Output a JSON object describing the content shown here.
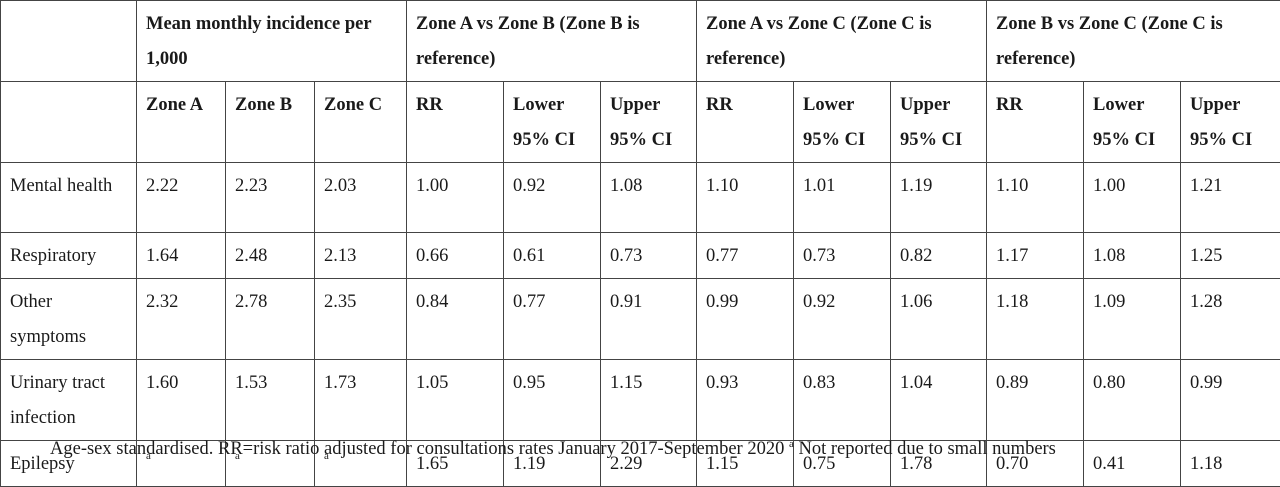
{
  "table": {
    "group_headers": [
      "",
      "Mean monthly incidence per 1,000",
      "Zone A vs Zone B (Zone B is reference)",
      "Zone A vs Zone C (Zone C is reference)",
      "Zone B vs Zone C (Zone C is reference)"
    ],
    "sub_headers": [
      "",
      "Zone A",
      "Zone B",
      "Zone C",
      "RR",
      "Lower 95% CI",
      "Upper 95% CI",
      "RR",
      "Lower 95% CI",
      "Upper 95% CI",
      "RR",
      "Lower 95% CI",
      "Upper 95% CI"
    ],
    "rows": [
      [
        "Mental health",
        "2.22",
        "2.23",
        "2.03",
        "1.00",
        "0.92",
        "1.08",
        "1.10",
        "1.01",
        "1.19",
        "1.10",
        "1.00",
        "1.21"
      ],
      [
        "Respiratory",
        "1.64",
        "2.48",
        "2.13",
        "0.66",
        "0.61",
        "0.73",
        "0.77",
        "0.73",
        "0.82",
        "1.17",
        "1.08",
        "1.25"
      ],
      [
        "Other symptoms",
        "2.32",
        "2.78",
        "2.35",
        "0.84",
        "0.77",
        "0.91",
        "0.99",
        "0.92",
        "1.06",
        "1.18",
        "1.09",
        "1.28"
      ],
      [
        "Urinary tract infection",
        "1.60",
        "1.53",
        "1.73",
        "1.05",
        "0.95",
        "1.15",
        "0.93",
        "0.83",
        "1.04",
        "0.89",
        "0.80",
        "0.99"
      ],
      [
        "Epilepsy",
        "a",
        "a",
        "a",
        "1.65",
        "1.19",
        "2.29",
        "1.15",
        "0.75",
        "1.78",
        "0.70",
        "0.41",
        "1.18"
      ]
    ],
    "superscript_marker": "a"
  },
  "footnote": {
    "text": "Age-sex standardised. RR=risk ratio adjusted for consultations rates January 2017-September 2020",
    "marker": "a",
    "marker_text": "Not reported due to small numbers"
  }
}
